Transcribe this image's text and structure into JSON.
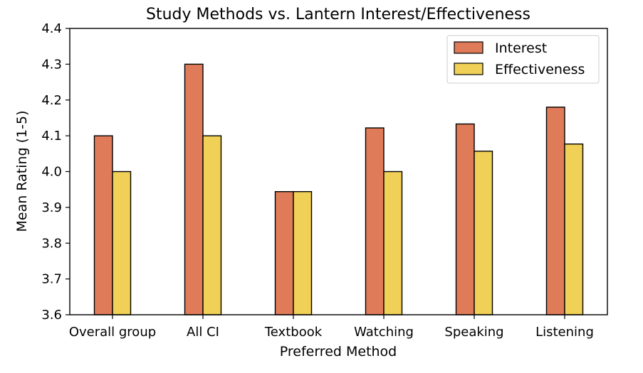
{
  "chart_data": {
    "type": "bar",
    "title": "Study Methods vs. Lantern Interest/Effectiveness",
    "xlabel": "Preferred Method",
    "ylabel": "Mean Rating (1-5)",
    "ylim": [
      3.6,
      4.4
    ],
    "yticks": [
      "3.6",
      "3.7",
      "3.8",
      "3.9",
      "4.0",
      "4.1",
      "4.2",
      "4.3",
      "4.4"
    ],
    "categories": [
      "Overall group",
      "All CI",
      "Textbook",
      "Watching",
      "Speaking",
      "Listening"
    ],
    "series": [
      {
        "name": "Interest",
        "color": "#E07B59",
        "values": [
          4.1,
          4.3,
          3.944,
          4.122,
          4.133,
          4.18
        ]
      },
      {
        "name": "Effectiveness",
        "color": "#F0D056",
        "values": [
          4.0,
          4.1,
          3.944,
          4.0,
          4.057,
          4.077
        ]
      }
    ],
    "legend_position": "top-right",
    "grid": false
  }
}
